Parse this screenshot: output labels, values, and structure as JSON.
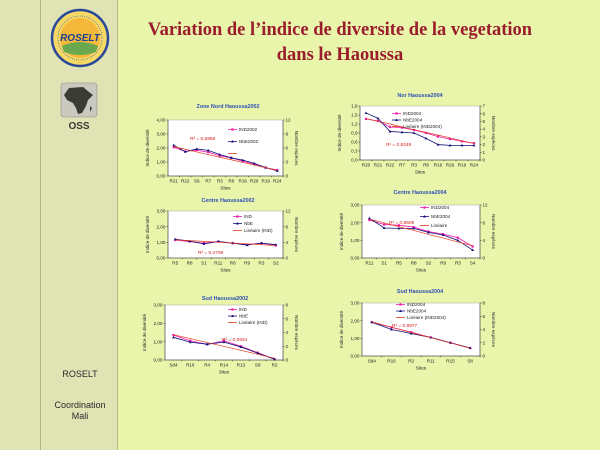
{
  "slide": {
    "title_line1": "Variation de l’indice de diversite de la vegetation",
    "title_line2": "dans le Haoussa"
  },
  "sidebar": {
    "logo_text": "ROSELT",
    "oss_logo_text": "OSS",
    "program": "ROSELT",
    "coordination": "Coordination",
    "country": "Mali"
  },
  "colors": {
    "background": "#e8f5ab",
    "sidebar": "#e0e3b4",
    "title": "#9b1c2c",
    "chart_title": "#2f4fb5",
    "ind_series": "#f01ca8",
    "nbe_series": "#10107a",
    "trend": "#e23a1c",
    "annotation": "#d21a1a"
  },
  "chart_data": [
    {
      "type": "line",
      "title": "Zone Nord Haoussa2002",
      "ylabel": "Indice de diversité",
      "y2label": "Nombre espèces",
      "xlabel": "Sites",
      "ylim": [
        0,
        4
      ],
      "yticks": [
        "0,00",
        "1,00",
        "2,00",
        "3,00",
        "4,00"
      ],
      "y2lim": [
        0,
        12
      ],
      "y2ticks": [
        "0",
        "3",
        "6",
        "9",
        "12"
      ],
      "categories": [
        "R21",
        "R22",
        "S6",
        "R7",
        "R3",
        "R8",
        "R16",
        "R26",
        "R19",
        "R24"
      ],
      "series": [
        {
          "name": "IND2002",
          "axis": "left",
          "kind": "data",
          "values": [
            2.05,
            1.75,
            1.85,
            1.7,
            1.45,
            1.3,
            1.05,
            0.85,
            0.6,
            0.43
          ]
        },
        {
          "name": "NbE2002",
          "axis": "right",
          "kind": "data",
          "values": [
            6.6,
            5.2,
            5.8,
            5.5,
            4.6,
            3.9,
            3.4,
            2.7,
            1.8,
            1.1
          ]
        },
        {
          "axis": "left",
          "kind": "trend",
          "values": [
            2.1,
            1.91,
            1.72,
            1.53,
            1.34,
            1.16,
            0.97,
            0.78,
            0.59,
            0.4
          ]
        }
      ],
      "annotation": "R² = 0,6958",
      "legend": "right"
    },
    {
      "type": "line",
      "title": "Nor Haoussa2004",
      "ylabel": "Indice de diversité",
      "y2label": "Nombre espèces",
      "xlabel": "Sites",
      "ylim": [
        0,
        1.8
      ],
      "yticks": [
        "0,0",
        "0,3",
        "0,6",
        "0,9",
        "1,2",
        "1,5",
        "1,8"
      ],
      "y2lim": [
        0,
        7
      ],
      "y2ticks": [
        "0",
        "1",
        "2",
        "3",
        "4",
        "5",
        "6",
        "7"
      ],
      "categories": [
        "R20",
        "R21",
        "R22",
        "R7",
        "R3",
        "R8",
        "R16",
        "R26",
        "R19",
        "R24"
      ],
      "series": [
        {
          "name": "IND2004",
          "axis": "left",
          "kind": "data",
          "values": [
            1.37,
            1.3,
            1.1,
            1.08,
            1.0,
            0.9,
            0.78,
            0.7,
            0.62,
            0.56
          ]
        },
        {
          "name": "NbE2004",
          "axis": "right",
          "kind": "data",
          "values": [
            6.1,
            5.4,
            3.7,
            3.6,
            3.5,
            2.8,
            2.0,
            1.9,
            1.9,
            1.9
          ]
        },
        {
          "name": "Linéaire (IND2004)",
          "axis": "left",
          "kind": "trend",
          "values": [
            1.38,
            1.29,
            1.2,
            1.1,
            1.01,
            0.92,
            0.83,
            0.74,
            0.64,
            0.55
          ]
        }
      ],
      "annotation": "R² = 0,8249",
      "legend": "top-left"
    },
    {
      "type": "line",
      "title": "Centre Haoussa2002",
      "ylabel": "Indice de diversité",
      "y2label": "Nombre espèces",
      "xlabel": "Sites",
      "ylim": [
        0,
        3
      ],
      "yticks": [
        "0,00",
        "1,00",
        "2,00",
        "3,00"
      ],
      "y2lim": [
        0,
        12
      ],
      "y2ticks": [
        "0",
        "4",
        "8",
        "12"
      ],
      "categories": [
        "R5",
        "R8",
        "S1",
        "R11",
        "R6",
        "R9",
        "R3",
        "S2"
      ],
      "series": [
        {
          "name": "IND",
          "axis": "left",
          "kind": "data",
          "values": [
            1.15,
            1.05,
            0.95,
            1.05,
            0.95,
            0.85,
            0.95,
            0.8
          ]
        },
        {
          "name": "NbE",
          "axis": "right",
          "kind": "data",
          "values": [
            4.8,
            4.3,
            3.6,
            4.2,
            3.8,
            3.3,
            3.8,
            3.4
          ]
        },
        {
          "name": "Linéaire (IND)",
          "axis": "left",
          "kind": "trend",
          "values": [
            1.16,
            1.11,
            1.06,
            1.01,
            0.95,
            0.9,
            0.85,
            0.8
          ]
        }
      ],
      "annotation": "R² = 0,4709",
      "legend": "right"
    },
    {
      "type": "line",
      "title": "Centre Haoussa2004",
      "ylabel": "Indice de diversité",
      "y2label": "Nombre espèces",
      "xlabel": "Sites",
      "ylim": [
        0,
        3
      ],
      "yticks": [
        "0,00",
        "1,00",
        "2,00",
        "3,00"
      ],
      "y2lim": [
        0,
        12
      ],
      "y2ticks": [
        "0",
        "4",
        "8",
        "12"
      ],
      "categories": [
        "R11",
        "S1",
        "R5",
        "R8",
        "S2",
        "R9",
        "R3",
        "S4"
      ],
      "series": [
        {
          "name": "IND2004",
          "axis": "left",
          "kind": "data",
          "values": [
            2.15,
            1.9,
            1.85,
            1.75,
            1.5,
            1.35,
            1.15,
            0.65
          ]
        },
        {
          "name": "NbE2004",
          "axis": "right",
          "kind": "data",
          "values": [
            9.0,
            6.8,
            6.7,
            6.7,
            5.8,
            5.2,
            4.0,
            1.8
          ]
        },
        {
          "name": "Linéaire",
          "axis": "left",
          "kind": "trend",
          "values": [
            2.2,
            1.99,
            1.77,
            1.56,
            1.34,
            1.13,
            0.91,
            0.7
          ]
        }
      ],
      "annotation": "R² = 0,8609",
      "legend": "right"
    },
    {
      "type": "line",
      "title": "Sud Haoussa2002",
      "ylabel": "Indice de diversité",
      "y2label": "Nombre espèces",
      "xlabel": "Sites",
      "ylim": [
        0,
        3
      ],
      "yticks": [
        "0,00",
        "1,00",
        "2,00",
        "3,00"
      ],
      "y2lim": [
        0,
        8
      ],
      "y2ticks": [
        "0",
        "2",
        "4",
        "6",
        "8"
      ],
      "categories": [
        "Sd4",
        "R16",
        "R4",
        "R14",
        "R13",
        "S8",
        "R2"
      ],
      "series": [
        {
          "name": "IND",
          "axis": "left",
          "kind": "data",
          "values": [
            1.36,
            1.05,
            0.85,
            1.05,
            0.75,
            0.4,
            0.05
          ]
        },
        {
          "name": "NbE",
          "axis": "right",
          "kind": "data",
          "values": [
            3.3,
            2.6,
            2.3,
            2.6,
            1.9,
            1.0,
            0.1
          ]
        },
        {
          "name": "Linéaire (IND)",
          "axis": "left",
          "kind": "trend",
          "values": [
            1.38,
            1.17,
            0.95,
            0.74,
            0.53,
            0.31,
            0.1
          ]
        }
      ],
      "annotation": "R² = 0,6934",
      "legend": "top-right"
    },
    {
      "type": "line",
      "title": "Sud Haoussa2004",
      "ylabel": "Indice de diversité",
      "y2label": "Nombre espèces",
      "xlabel": "Sites",
      "ylim": [
        0,
        3
      ],
      "yticks": [
        "0,00",
        "1,00",
        "2,00",
        "3,00"
      ],
      "y2lim": [
        0,
        8
      ],
      "y2ticks": [
        "0",
        "2",
        "4",
        "6",
        "8"
      ],
      "categories": [
        "Sd4",
        "R16",
        "R2",
        "R11",
        "R15",
        "S8"
      ],
      "series": [
        {
          "name": "IND2004",
          "axis": "left",
          "kind": "data",
          "values": [
            1.92,
            1.62,
            1.35,
            1.05,
            0.75,
            0.45
          ]
        },
        {
          "name": "NbE2004",
          "axis": "right",
          "kind": "data",
          "values": [
            5.1,
            4.0,
            3.4,
            2.8,
            2.0,
            1.2
          ]
        },
        {
          "name": "Linéaire (IND2004)",
          "axis": "left",
          "kind": "trend",
          "values": [
            1.93,
            1.63,
            1.33,
            1.04,
            0.74,
            0.44
          ]
        }
      ],
      "annotation": "R² = 0,9977",
      "legend": "top-left"
    }
  ]
}
